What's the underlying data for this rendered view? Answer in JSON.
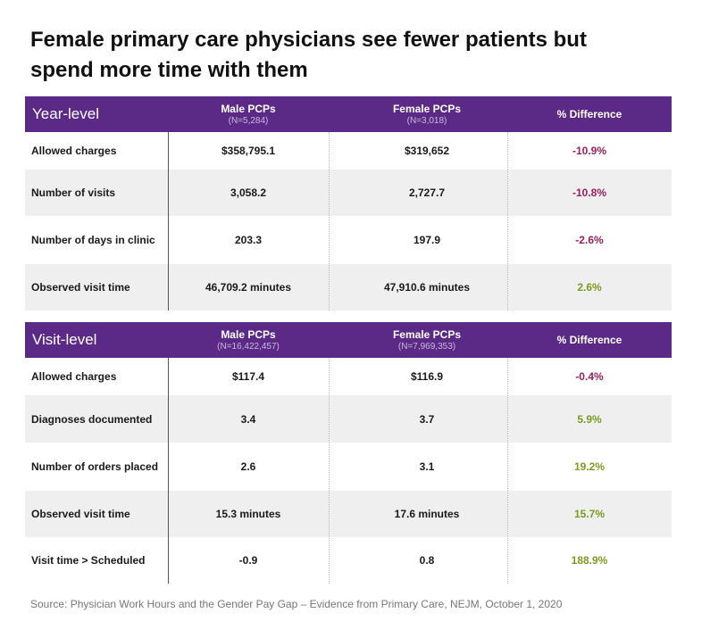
{
  "title": "Female primary care physicians see fewer patients but spend more time with them",
  "columns": {
    "male": "Male PCPs",
    "female": "Female PCPs",
    "diff": "% Difference"
  },
  "colors": {
    "header_bg": "#5b2a86",
    "negative": "#9b1f5b",
    "positive": "#7a9b1f",
    "alt_row": "#efefef"
  },
  "tables": [
    {
      "level": "Year-level",
      "male_n": "(N=5,284)",
      "female_n": "(N=3,018)",
      "rows": [
        {
          "label": "Allowed charges",
          "male": "$358,795.1",
          "female": "$319,652",
          "diff": "-10.9%",
          "sign": "neg"
        },
        {
          "label": "Number of visits",
          "male": "3,058.2",
          "female": "2,727.7",
          "diff": "-10.8%",
          "sign": "neg"
        },
        {
          "label": "Number of days in clinic",
          "male": "203.3",
          "female": "197.9",
          "diff": "-2.6%",
          "sign": "neg"
        },
        {
          "label": "Observed visit time",
          "male": "46,709.2 minutes",
          "female": "47,910.6 minutes",
          "diff": "2.6%",
          "sign": "pos"
        }
      ]
    },
    {
      "level": "Visit-level",
      "male_n": "(N=16,422,457)",
      "female_n": "(N=7,969,353)",
      "rows": [
        {
          "label": "Allowed charges",
          "male": "$117.4",
          "female": "$116.9",
          "diff": "-0.4%",
          "sign": "neg"
        },
        {
          "label": "Diagnoses documented",
          "male": "3.4",
          "female": "3.7",
          "diff": "5.9%",
          "sign": "pos"
        },
        {
          "label": "Number of orders placed",
          "male": "2.6",
          "female": "3.1",
          "diff": "19.2%",
          "sign": "pos"
        },
        {
          "label": "Observed visit time",
          "male": "15.3 minutes",
          "female": "17.6 minutes",
          "diff": "15.7%",
          "sign": "pos"
        },
        {
          "label": "Visit time > Scheduled",
          "male": "-0.9",
          "female": "0.8",
          "diff": "188.9%",
          "sign": "pos"
        }
      ]
    }
  ],
  "source": "Source: Physician Work Hours and the Gender Pay Gap – Evidence from Primary Care, NEJM, October 1, 2020",
  "chart_data": {
    "type": "table",
    "title": "Female primary care physicians see fewer patients but spend more time with them",
    "columns": [
      "Male PCPs",
      "Female PCPs",
      "% Difference"
    ],
    "year_level": {
      "categories": [
        "Allowed charges",
        "Number of visits",
        "Number of days in clinic",
        "Observed visit time"
      ],
      "series": [
        {
          "name": "Male PCPs",
          "values": [
            358795.1,
            3058.2,
            203.3,
            46709.2
          ]
        },
        {
          "name": "Female PCPs",
          "values": [
            319652,
            2727.7,
            197.9,
            47910.6
          ]
        },
        {
          "name": "% Difference",
          "values": [
            -10.9,
            -10.8,
            -2.6,
            2.6
          ]
        }
      ]
    },
    "visit_level": {
      "categories": [
        "Allowed charges",
        "Diagnoses documented",
        "Number of orders placed",
        "Observed visit time",
        "Visit time > Scheduled"
      ],
      "series": [
        {
          "name": "Male PCPs",
          "values": [
            117.4,
            3.4,
            2.6,
            15.3,
            -0.9
          ]
        },
        {
          "name": "Female PCPs",
          "values": [
            116.9,
            3.7,
            3.1,
            17.6,
            0.8
          ]
        },
        {
          "name": "% Difference",
          "values": [
            -0.4,
            5.9,
            19.2,
            15.7,
            188.9
          ]
        }
      ]
    }
  }
}
